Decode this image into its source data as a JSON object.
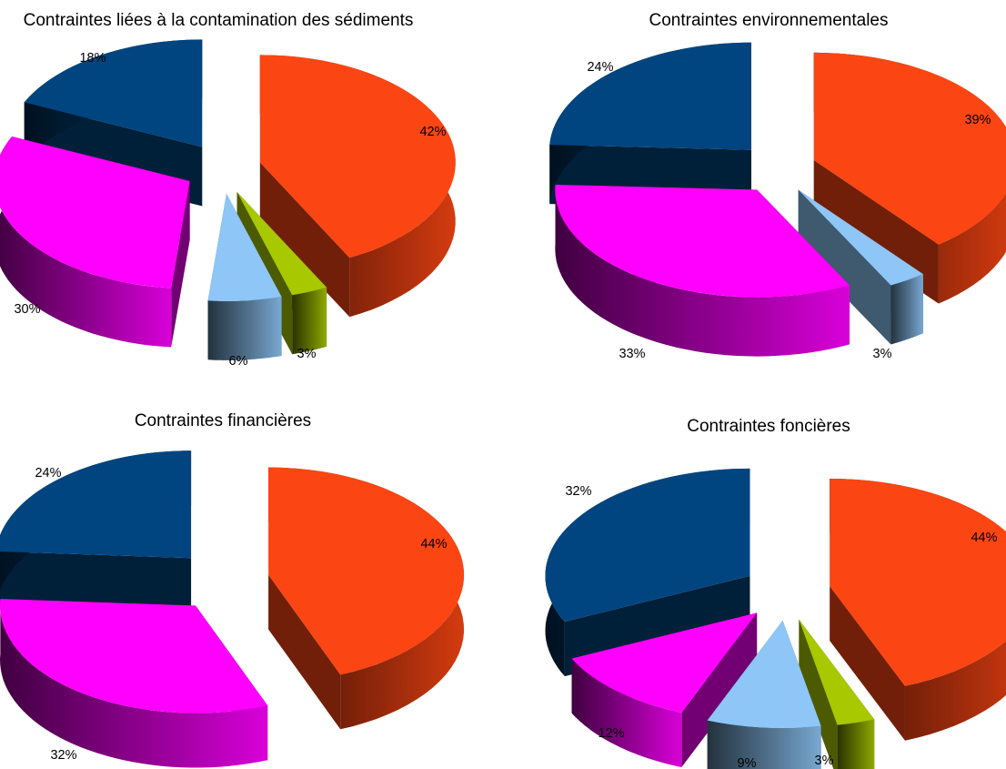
{
  "colors": {
    "orange": "#fb4512",
    "blue": "#00457f",
    "magenta": "#ff00ff",
    "light_blue": "#8dc6f7",
    "olive": "#a8c800"
  },
  "chart_data": [
    {
      "type": "pie",
      "style": "3d-exploded",
      "title": "Contraintes liées à la contamination des sédiments",
      "slices": [
        {
          "value": 42,
          "label": "42%",
          "color": "#fb4512"
        },
        {
          "value": 3,
          "label": "3%",
          "color": "#a8c800"
        },
        {
          "value": 6,
          "label": "6%",
          "color": "#8dc6f7"
        },
        {
          "value": 30,
          "label": "30%",
          "color": "#ff00ff"
        },
        {
          "value": 18,
          "label": "18%",
          "color": "#00457f"
        }
      ]
    },
    {
      "type": "pie",
      "style": "3d-exploded",
      "title": "Contraintes environnementales",
      "slices": [
        {
          "value": 39,
          "label": "39%",
          "color": "#fb4512"
        },
        {
          "value": 3,
          "label": "3%",
          "color": "#8dc6f7"
        },
        {
          "value": 33,
          "label": "33%",
          "color": "#ff00ff"
        },
        {
          "value": 24,
          "label": "24%",
          "color": "#00457f"
        }
      ]
    },
    {
      "type": "pie",
      "style": "3d-exploded",
      "title": "Contraintes financières",
      "slices": [
        {
          "value": 44,
          "label": "44%",
          "color": "#fb4512"
        },
        {
          "value": 32,
          "label": "32%",
          "color": "#ff00ff"
        },
        {
          "value": 24,
          "label": "24%",
          "color": "#00457f"
        }
      ]
    },
    {
      "type": "pie",
      "style": "3d-exploded",
      "title": "Contraintes foncières",
      "slices": [
        {
          "value": 44,
          "label": "44%",
          "color": "#fb4512"
        },
        {
          "value": 3,
          "label": "3%",
          "color": "#a8c800"
        },
        {
          "value": 9,
          "label": "9%",
          "color": "#8dc6f7"
        },
        {
          "value": 12,
          "label": "12%",
          "color": "#ff00ff"
        },
        {
          "value": 32,
          "label": "32%",
          "color": "#00457f"
        }
      ]
    }
  ]
}
